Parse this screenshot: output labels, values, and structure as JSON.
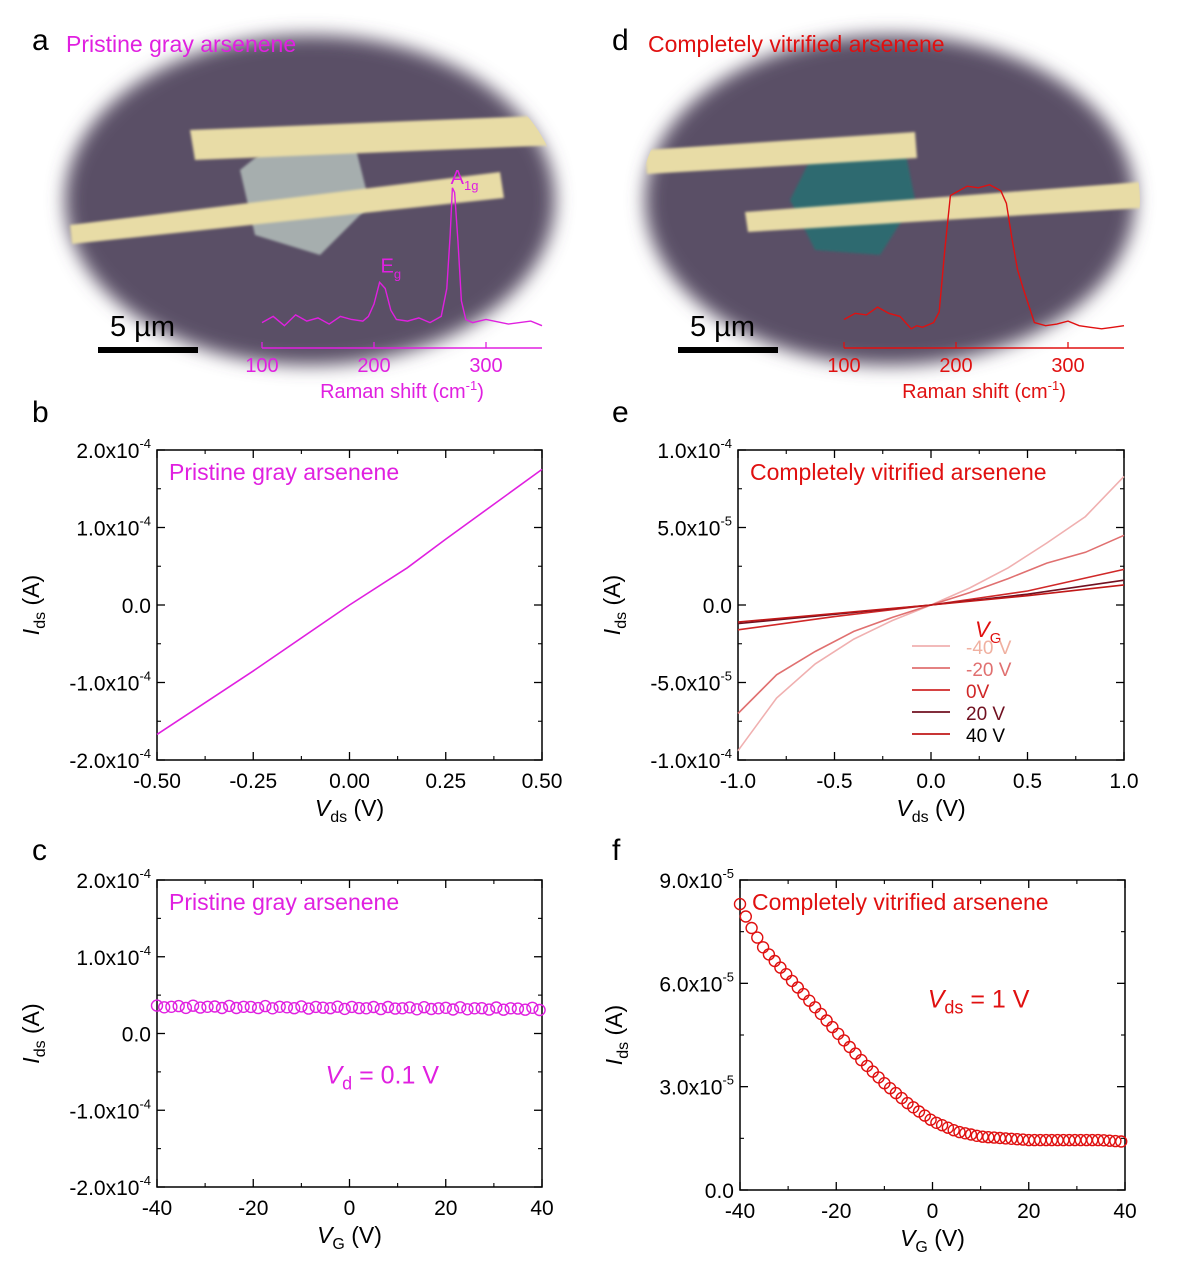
{
  "figure": {
    "colors": {
      "magenta": "#e020e0",
      "red": "#e01010"
    },
    "panels": [
      {
        "letter": "a",
        "title": "Pristine gray arsenene",
        "scalebar": "5 µm",
        "raman_xlabel_pre": "Raman shift (cm",
        "raman_xlabel_sup": "-1",
        "raman_xlabel_post": ")",
        "peak1_main": "E",
        "peak1_sub": "g",
        "peak2_main": "A",
        "peak2_sub": "1g"
      },
      {
        "letter": "b",
        "title": "Pristine gray arsenene"
      },
      {
        "letter": "c",
        "title": "Pristine gray arsenene",
        "note_var": "V",
        "note_sub": "d",
        "note_rest": " = 0.1 V"
      },
      {
        "letter": "d",
        "title": "Completely vitrified arsenene",
        "scalebar": "5 µm",
        "raman_xlabel_pre": "Raman shift (cm",
        "raman_xlabel_sup": "-1",
        "raman_xlabel_post": ")"
      },
      {
        "letter": "e",
        "title": "Completely vitrified arsenene",
        "legend_title_var": "V",
        "legend_title_sub": "G"
      },
      {
        "letter": "f",
        "title": "Completely vitrified arsenene",
        "note_var": "V",
        "note_sub": "ds",
        "note_rest": " = 1 V"
      }
    ]
  },
  "chart_data": [
    {
      "panel": "a",
      "type": "line",
      "xlabel": "Raman shift (cm-1)",
      "xlim": [
        100,
        350
      ],
      "xticks": [
        "100",
        "200",
        "300"
      ],
      "series": [
        {
          "color": "#e020e0",
          "x": [
            100,
            110,
            120,
            130,
            140,
            150,
            160,
            170,
            180,
            190,
            195,
            200,
            205,
            210,
            215,
            220,
            230,
            240,
            250,
            260,
            265,
            268,
            270,
            272,
            275,
            278,
            282,
            288,
            300,
            320,
            340,
            350
          ],
          "y": [
            0.08,
            0.12,
            0.06,
            0.13,
            0.09,
            0.11,
            0.07,
            0.12,
            0.1,
            0.09,
            0.12,
            0.2,
            0.34,
            0.3,
            0.16,
            0.1,
            0.09,
            0.11,
            0.08,
            0.12,
            0.3,
            0.65,
            0.95,
            0.92,
            0.6,
            0.22,
            0.1,
            0.08,
            0.1,
            0.07,
            0.09,
            0.06
          ]
        }
      ]
    },
    {
      "panel": "d",
      "type": "line",
      "xlabel": "Raman shift (cm-1)",
      "xlim": [
        100,
        350
      ],
      "xticks": [
        "100",
        "200",
        "300"
      ],
      "series": [
        {
          "color": "#e01010",
          "x": [
            100,
            110,
            120,
            130,
            140,
            150,
            160,
            165,
            170,
            180,
            185,
            190,
            195,
            200,
            210,
            220,
            230,
            240,
            245,
            250,
            255,
            260,
            270,
            280,
            290,
            300,
            310,
            320,
            330,
            340,
            350
          ],
          "y": [
            0.1,
            0.14,
            0.13,
            0.18,
            0.14,
            0.12,
            0.04,
            0.06,
            0.05,
            0.08,
            0.15,
            0.55,
            0.9,
            0.92,
            0.96,
            0.95,
            0.97,
            0.93,
            0.85,
            0.62,
            0.42,
            0.3,
            0.08,
            0.06,
            0.07,
            0.09,
            0.06,
            0.05,
            0.04,
            0.05,
            0.06
          ]
        }
      ]
    },
    {
      "panel": "b",
      "type": "line",
      "xlabel_var": "V",
      "xlabel_sub": "ds",
      "xlabel_rest": " (V)",
      "ylabel_var": "I",
      "ylabel_sub": "ds",
      "ylabel_rest": " (A)",
      "xlim": [
        -0.5,
        0.5
      ],
      "ylim": [
        -0.0002,
        0.0002
      ],
      "xticks": [
        -0.5,
        -0.25,
        0,
        0.25,
        0.5
      ],
      "xtick_labels": [
        "-0.50",
        "-0.25",
        "0.00",
        "0.25",
        "0.50"
      ],
      "yticks": [
        -0.0002,
        -0.0001,
        0,
        0.0001,
        0.0002
      ],
      "ytick_labels": [
        {
          "m": "-2.0x10",
          "e": "-4"
        },
        {
          "m": "-1.0x10",
          "e": "-4"
        },
        {
          "m": "0.0",
          "e": ""
        },
        {
          "m": "1.0x10",
          "e": "-4"
        },
        {
          "m": "2.0x10",
          "e": "-4"
        }
      ],
      "series": [
        {
          "color": "#e020e0",
          "x": [
            -0.5,
            -0.25,
            0,
            0.15,
            0.25,
            0.5
          ],
          "y": [
            -0.000167,
            -8.5e-05,
            0,
            4.8e-05,
            8.5e-05,
            0.000175
          ]
        }
      ]
    },
    {
      "panel": "c",
      "type": "scatter",
      "xlabel_var": "V",
      "xlabel_sub": "G",
      "xlabel_rest": " (V)",
      "ylabel_var": "I",
      "ylabel_sub": "ds",
      "ylabel_rest": " (A)",
      "xlim": [
        -40,
        40
      ],
      "ylim": [
        -0.0002,
        0.0002
      ],
      "xticks": [
        -40,
        -20,
        0,
        20,
        40
      ],
      "xtick_labels": [
        "-40",
        "-20",
        "0",
        "20",
        "40"
      ],
      "yticks": [
        -0.0002,
        -0.0001,
        0,
        0.0001,
        0.0002
      ],
      "ytick_labels": [
        {
          "m": "-2.0x10",
          "e": "-4"
        },
        {
          "m": "-1.0x10",
          "e": "-4"
        },
        {
          "m": "0.0",
          "e": ""
        },
        {
          "m": "1.0x10",
          "e": "-4"
        },
        {
          "m": "2.0x10",
          "e": "-4"
        }
      ],
      "series": [
        {
          "color": "#e020e0",
          "marker": "circle",
          "x_range": [
            -40,
            40,
            1.5
          ],
          "y_start": 3.5e-05,
          "y_end": 3.2e-05
        }
      ]
    },
    {
      "panel": "e",
      "type": "line",
      "xlabel_var": "V",
      "xlabel_sub": "ds",
      "xlabel_rest": " (V)",
      "ylabel_var": "I",
      "ylabel_sub": "ds",
      "ylabel_rest": " (A)",
      "xlim": [
        -1,
        1
      ],
      "ylim": [
        -0.0001,
        0.0001
      ],
      "xticks": [
        -1,
        -0.5,
        0,
        0.5,
        1
      ],
      "xtick_labels": [
        "-1.0",
        "-0.5",
        "0.0",
        "0.5",
        "1.0"
      ],
      "yticks": [
        -0.0001,
        -5e-05,
        0,
        5e-05,
        0.0001
      ],
      "ytick_labels": [
        {
          "m": "-1.0x10",
          "e": "-4"
        },
        {
          "m": "-5.0x10",
          "e": "-5"
        },
        {
          "m": "0.0",
          "e": ""
        },
        {
          "m": "5.0x10",
          "e": "-5"
        },
        {
          "m": "1.0x10",
          "e": "-4"
        }
      ],
      "series": [
        {
          "name": "-40 V",
          "color": "#f0b0b0",
          "x": [
            -1,
            -0.8,
            -0.6,
            -0.4,
            -0.2,
            0,
            0.2,
            0.4,
            0.6,
            0.8,
            1
          ],
          "y": [
            -9.4e-05,
            -6e-05,
            -3.8e-05,
            -2.2e-05,
            -1e-05,
            0,
            1.1e-05,
            2.4e-05,
            4e-05,
            5.7e-05,
            8.3e-05
          ]
        },
        {
          "name": "-20 V",
          "color": "#e07070",
          "x": [
            -1,
            -0.8,
            -0.6,
            -0.4,
            -0.2,
            0,
            0.2,
            0.4,
            0.6,
            0.8,
            1
          ],
          "y": [
            -7e-05,
            -4.5e-05,
            -3e-05,
            -1.7e-05,
            -8e-06,
            0,
            8e-06,
            1.7e-05,
            2.7e-05,
            3.4e-05,
            4.5e-05
          ]
        },
        {
          "name": "0V",
          "color": "#d02828",
          "x": [
            -1,
            -0.5,
            0,
            0.5,
            1
          ],
          "y": [
            -1.6e-05,
            -7.5e-06,
            0,
            9e-06,
            2.3e-05
          ]
        },
        {
          "name": "20 V",
          "color": "#701020",
          "x": [
            -1,
            -0.5,
            0,
            0.5,
            1
          ],
          "y": [
            -1.2e-05,
            -6e-06,
            0,
            7e-06,
            1.6e-05
          ]
        },
        {
          "name": "40 V",
          "color": "#c01818",
          "x": [
            -1,
            -0.5,
            0,
            0.5,
            1
          ],
          "y": [
            -1.1e-05,
            -5.5e-06,
            0,
            6e-06,
            1.3e-05
          ]
        }
      ]
    },
    {
      "panel": "f",
      "type": "scatter",
      "xlabel_var": "V",
      "xlabel_sub": "G",
      "xlabel_rest": " (V)",
      "ylabel_var": "I",
      "ylabel_sub": "ds",
      "ylabel_rest": " (A)",
      "xlim": [
        -40,
        40
      ],
      "ylim": [
        0,
        9e-05
      ],
      "xticks": [
        -40,
        -20,
        0,
        20,
        40
      ],
      "xtick_labels": [
        "-40",
        "-20",
        "0",
        "20",
        "40"
      ],
      "yticks": [
        0,
        3e-05,
        6e-05,
        9e-05
      ],
      "ytick_labels": [
        {
          "m": "0.0",
          "e": ""
        },
        {
          "m": "3.0x10",
          "e": "-5"
        },
        {
          "m": "6.0x10",
          "e": "-5"
        },
        {
          "m": "9.0x10",
          "e": "-5"
        }
      ],
      "series": [
        {
          "color": "#e01010",
          "marker": "circle",
          "x_range": [
            -40,
            40,
            1.2
          ],
          "curve_x": [
            -40,
            -38,
            -35,
            -30,
            -25,
            -20,
            -15,
            -10,
            -5,
            0,
            5,
            10,
            15,
            20,
            25,
            30,
            35,
            40
          ],
          "curve_y": [
            8.3e-05,
            7.7e-05,
            7e-05,
            6.2e-05,
            5.4e-05,
            4.6e-05,
            3.8e-05,
            3.1e-05,
            2.5e-05,
            2e-05,
            1.7e-05,
            1.55e-05,
            1.5e-05,
            1.45e-05,
            1.45e-05,
            1.45e-05,
            1.45e-05,
            1.4e-05
          ]
        }
      ]
    }
  ]
}
